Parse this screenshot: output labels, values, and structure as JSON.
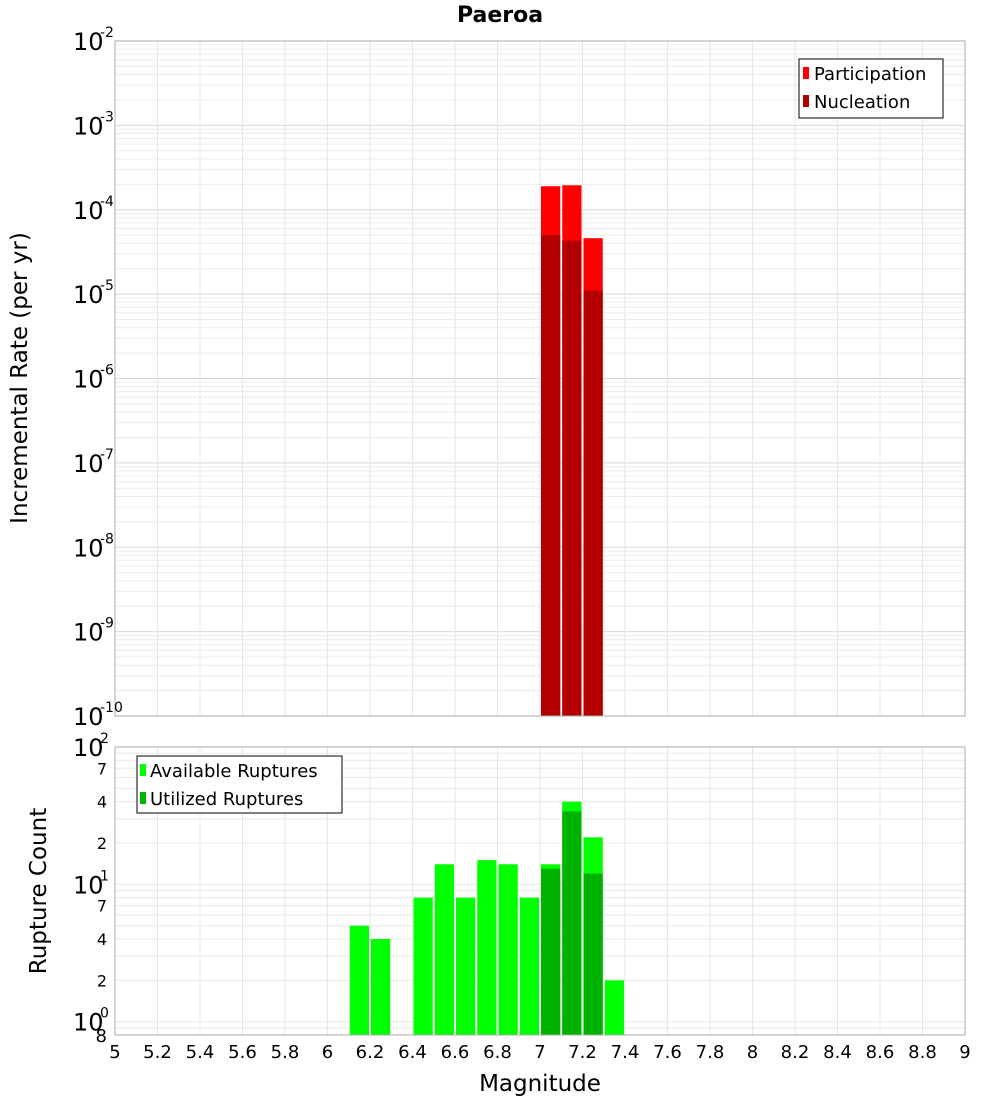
{
  "chart_data": [
    {
      "type": "bar",
      "title": "Paeroa",
      "xlabel": "Magnitude",
      "ylabel": "Incremental Rate (per yr)",
      "yscale": "log",
      "xlim": [
        5,
        9
      ],
      "ylim": [
        1e-10,
        0.01
      ],
      "bin_width": 0.1,
      "y_tick_labels": [
        {
          "base": "10",
          "exp": "-10"
        },
        {
          "base": "10",
          "exp": "-9"
        },
        {
          "base": "10",
          "exp": "-8"
        },
        {
          "base": "10",
          "exp": "-7"
        },
        {
          "base": "10",
          "exp": "-6"
        },
        {
          "base": "10",
          "exp": "-5"
        },
        {
          "base": "10",
          "exp": "-4"
        },
        {
          "base": "10",
          "exp": "-3"
        },
        {
          "base": "10",
          "exp": "-2"
        }
      ],
      "legend_position": "top-right",
      "series": [
        {
          "name": "Participation",
          "color": "#ff0000",
          "x": [
            7.05,
            7.15,
            7.25
          ],
          "values": [
            0.00019,
            0.000195,
            4.6e-05
          ]
        },
        {
          "name": "Nucleation",
          "color": "#b20000",
          "x": [
            7.05,
            7.15,
            7.25
          ],
          "values": [
            5e-05,
            4.3e-05,
            1.1e-05
          ]
        }
      ]
    },
    {
      "type": "bar",
      "xlabel": "Magnitude",
      "ylabel": "Rupture Count",
      "yscale": "log",
      "xlim": [
        5,
        9
      ],
      "ylim": [
        0.8,
        100
      ],
      "x_ticks": [
        "5",
        "5.2",
        "5.4",
        "5.6",
        "5.8",
        "6",
        "6.2",
        "6.4",
        "6.6",
        "6.8",
        "7",
        "7.2",
        "7.4",
        "7.6",
        "7.8",
        "8",
        "8.2",
        "8.4",
        "8.6",
        "8.8",
        "9"
      ],
      "y_major_labels": [
        {
          "base": "10",
          "exp": "0"
        },
        {
          "base": "10",
          "exp": "1"
        },
        {
          "base": "10",
          "exp": "2"
        }
      ],
      "y_minor_labels": [
        "8",
        "2",
        "4",
        "7",
        "2",
        "4",
        "7"
      ],
      "legend_position": "top-left",
      "series": [
        {
          "name": "Available Ruptures",
          "color": "#00ff00",
          "x": [
            6.15,
            6.25,
            6.45,
            6.55,
            6.65,
            6.75,
            6.85,
            6.95,
            7.05,
            7.15,
            7.25,
            7.35
          ],
          "values": [
            5,
            4,
            8,
            14,
            8,
            15,
            14,
            8,
            14,
            40,
            22,
            2
          ]
        },
        {
          "name": "Utilized Ruptures",
          "color": "#00b200",
          "x": [
            7.05,
            7.15,
            7.25
          ],
          "values": [
            13,
            34,
            12
          ]
        }
      ]
    }
  ]
}
